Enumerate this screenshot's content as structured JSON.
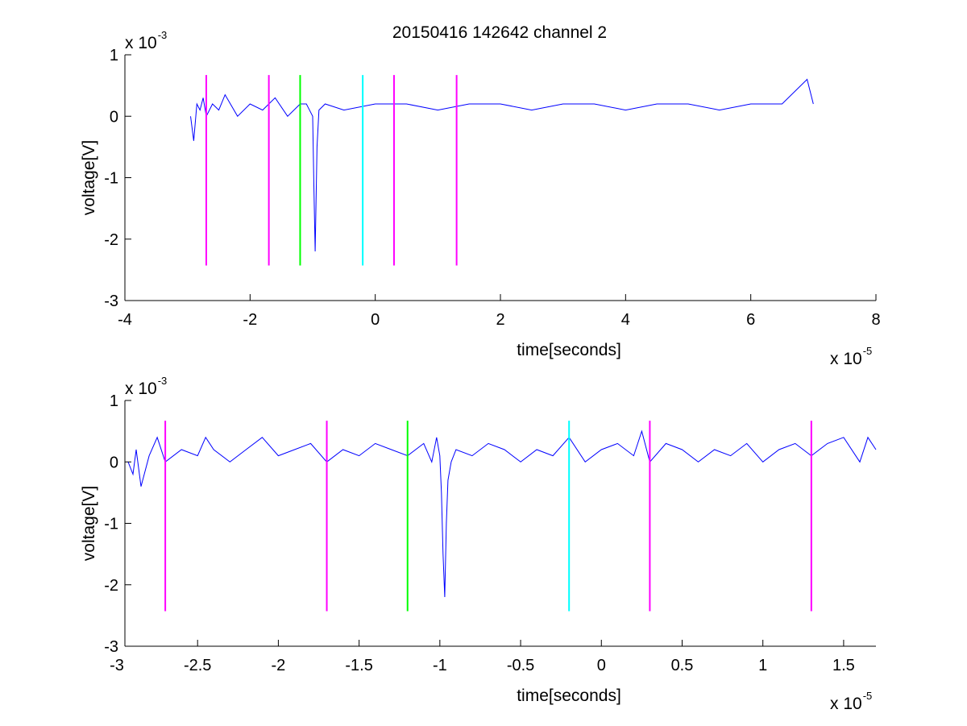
{
  "figure": {
    "title": "20150416 142642 channel 2",
    "background": "#ffffff"
  },
  "colors": {
    "signal": "#0000ff",
    "marker_magenta": "#ff00ff",
    "marker_green": "#00ff00",
    "marker_cyan": "#00ffff",
    "axes": "#000000"
  },
  "chart_data": [
    {
      "type": "line",
      "title": "20150416 142642 channel 2",
      "xlabel": "time[seconds]",
      "ylabel": "voltage[V]",
      "x_multiplier_label": {
        "base": "x 10",
        "exponent": "-5"
      },
      "y_multiplier_label": {
        "base": "x 10",
        "exponent": "-3"
      },
      "xlim": [
        -4,
        8
      ],
      "ylim": [
        -3,
        1
      ],
      "x_ticks": [
        -4,
        -2,
        0,
        2,
        4,
        6,
        8
      ],
      "x_tick_labels": [
        "-4",
        "-2",
        "0",
        "2",
        "4",
        "6",
        "8"
      ],
      "y_ticks": [
        -3,
        -2,
        -1,
        0,
        1
      ],
      "y_tick_labels": [
        "-3",
        "-2",
        "-1",
        "0",
        "1"
      ],
      "grid": false,
      "series": [
        {
          "color": "#0000ff",
          "x": [
            -2.95,
            -2.9,
            -2.85,
            -2.8,
            -2.75,
            -2.7,
            -2.6,
            -2.5,
            -2.4,
            -2.2,
            -2.0,
            -1.8,
            -1.6,
            -1.4,
            -1.2,
            -1.1,
            -1.0,
            -0.98,
            -0.96,
            -0.93,
            -0.9,
            -0.8,
            -0.5,
            0.0,
            0.5,
            1.0,
            1.5,
            2.0,
            2.5,
            3.0,
            3.5,
            4.0,
            4.5,
            5.0,
            5.5,
            6.0,
            6.5,
            6.9,
            7.0
          ],
          "y": [
            0.0,
            -0.4,
            0.2,
            0.1,
            0.3,
            0.0,
            0.2,
            0.1,
            0.35,
            0.0,
            0.2,
            0.1,
            0.3,
            0.0,
            0.2,
            0.2,
            0.0,
            -1.2,
            -2.2,
            -0.5,
            0.1,
            0.2,
            0.1,
            0.2,
            0.2,
            0.1,
            0.2,
            0.2,
            0.1,
            0.2,
            0.2,
            0.1,
            0.2,
            0.2,
            0.1,
            0.2,
            0.2,
            0.6,
            0.2
          ]
        }
      ],
      "markers": [
        {
          "x": -2.7,
          "color": "magenta",
          "y_top": 0.67,
          "y_bottom": -2.43
        },
        {
          "x": -1.7,
          "color": "magenta",
          "y_top": 0.67,
          "y_bottom": -2.43
        },
        {
          "x": -1.2,
          "color": "green",
          "y_top": 0.67,
          "y_bottom": -2.43
        },
        {
          "x": -0.2,
          "color": "cyan",
          "y_top": 0.67,
          "y_bottom": -2.43
        },
        {
          "x": 0.3,
          "color": "magenta",
          "y_top": 0.67,
          "y_bottom": -2.43
        },
        {
          "x": 1.3,
          "color": "magenta",
          "y_top": 0.67,
          "y_bottom": -2.43
        }
      ]
    },
    {
      "type": "line",
      "title": "",
      "xlabel": "time[seconds]",
      "ylabel": "voltage[V]",
      "x_multiplier_label": {
        "base": "x 10",
        "exponent": "-5"
      },
      "y_multiplier_label": {
        "base": "x 10",
        "exponent": "-3"
      },
      "xlim": [
        -2.95,
        1.7
      ],
      "ylim": [
        -3,
        1
      ],
      "x_ticks": [
        -3,
        -2.5,
        -2,
        -1.5,
        -1,
        -0.5,
        0,
        0.5,
        1,
        1.5
      ],
      "x_tick_labels": [
        "-3",
        "-2.5",
        "-2",
        "-1.5",
        "-1",
        "-0.5",
        "0",
        "0.5",
        "1",
        "1.5"
      ],
      "y_ticks": [
        -3,
        -2,
        -1,
        0,
        1
      ],
      "y_tick_labels": [
        "-3",
        "-2",
        "-1",
        "0",
        "1"
      ],
      "grid": false,
      "series": [
        {
          "color": "#0000ff",
          "x": [
            -2.93,
            -2.9,
            -2.88,
            -2.85,
            -2.8,
            -2.75,
            -2.7,
            -2.6,
            -2.5,
            -2.45,
            -2.4,
            -2.3,
            -2.2,
            -2.1,
            -2.0,
            -1.9,
            -1.8,
            -1.7,
            -1.6,
            -1.5,
            -1.4,
            -1.3,
            -1.2,
            -1.1,
            -1.05,
            -1.02,
            -1.0,
            -0.99,
            -0.98,
            -0.97,
            -0.96,
            -0.95,
            -0.93,
            -0.9,
            -0.8,
            -0.7,
            -0.6,
            -0.5,
            -0.4,
            -0.3,
            -0.2,
            -0.1,
            0.0,
            0.1,
            0.2,
            0.25,
            0.3,
            0.4,
            0.5,
            0.6,
            0.7,
            0.8,
            0.9,
            1.0,
            1.1,
            1.2,
            1.3,
            1.4,
            1.5,
            1.6,
            1.65,
            1.7
          ],
          "y": [
            0.0,
            -0.2,
            0.2,
            -0.4,
            0.1,
            0.4,
            0.0,
            0.2,
            0.1,
            0.4,
            0.2,
            0.0,
            0.2,
            0.4,
            0.1,
            0.2,
            0.3,
            0.0,
            0.2,
            0.1,
            0.3,
            0.2,
            0.1,
            0.3,
            0.0,
            0.4,
            0.1,
            -0.5,
            -1.5,
            -2.2,
            -1.0,
            -0.3,
            0.0,
            0.2,
            0.1,
            0.3,
            0.2,
            0.0,
            0.2,
            0.1,
            0.4,
            0.0,
            0.2,
            0.3,
            0.1,
            0.5,
            0.0,
            0.3,
            0.2,
            0.0,
            0.2,
            0.1,
            0.3,
            0.0,
            0.2,
            0.3,
            0.1,
            0.3,
            0.4,
            0.0,
            0.4,
            0.2
          ]
        }
      ],
      "markers": [
        {
          "x": -2.7,
          "color": "magenta",
          "y_top": 0.67,
          "y_bottom": -2.43
        },
        {
          "x": -1.7,
          "color": "magenta",
          "y_top": 0.67,
          "y_bottom": -2.43
        },
        {
          "x": -1.2,
          "color": "green",
          "y_top": 0.67,
          "y_bottom": -2.43
        },
        {
          "x": -0.2,
          "color": "cyan",
          "y_top": 0.67,
          "y_bottom": -2.43
        },
        {
          "x": 0.3,
          "color": "magenta",
          "y_top": 0.67,
          "y_bottom": -2.43
        },
        {
          "x": 1.3,
          "color": "magenta",
          "y_top": 0.67,
          "y_bottom": -2.43
        }
      ]
    }
  ]
}
